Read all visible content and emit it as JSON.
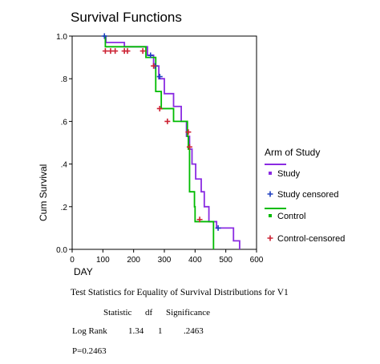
{
  "chart_data": {
    "type": "line",
    "title": "Survival Functions",
    "xlabel": "DAY",
    "ylabel": "Cum Survival",
    "xlim": [
      0,
      600
    ],
    "ylim": [
      0,
      1
    ],
    "x_ticks": [
      0,
      100,
      200,
      300,
      400,
      500,
      600
    ],
    "x_tick_labels": [
      "0",
      "100",
      "200",
      "300",
      "400",
      "500",
      "600"
    ],
    "y_ticks": [
      0,
      0.2,
      0.4,
      0.6,
      0.8,
      1.0
    ],
    "y_tick_labels": [
      "0.0",
      ".2",
      ".4",
      ".6",
      ".8",
      "1.0"
    ],
    "grid": false,
    "legend_title": "Arm of Study",
    "legend_position": "right",
    "series": [
      {
        "name": "Study",
        "color": "#8a2be2",
        "steps": [
          [
            100,
            1.0
          ],
          [
            110,
            0.97
          ],
          [
            170,
            0.95
          ],
          [
            230,
            0.95
          ],
          [
            245,
            0.91
          ],
          [
            265,
            0.86
          ],
          [
            282,
            0.8
          ],
          [
            300,
            0.73
          ],
          [
            330,
            0.67
          ],
          [
            355,
            0.6
          ],
          [
            372,
            0.53
          ],
          [
            382,
            0.47
          ],
          [
            390,
            0.4
          ],
          [
            402,
            0.33
          ],
          [
            420,
            0.27
          ],
          [
            430,
            0.2
          ],
          [
            445,
            0.13
          ],
          [
            465,
            0.13
          ],
          [
            470,
            0.1
          ],
          [
            520,
            0.1
          ],
          [
            525,
            0.04
          ],
          [
            540,
            0.04
          ],
          [
            545,
            0.0
          ]
        ]
      },
      {
        "name": "Control",
        "color": "#00bb00",
        "steps": [
          [
            100,
            1.0
          ],
          [
            108,
            0.95
          ],
          [
            232,
            0.95
          ],
          [
            240,
            0.9
          ],
          [
            260,
            0.9
          ],
          [
            272,
            0.74
          ],
          [
            290,
            0.66
          ],
          [
            330,
            0.6
          ],
          [
            375,
            0.53
          ],
          [
            378,
            0.47
          ],
          [
            382,
            0.27
          ],
          [
            385,
            0.27
          ],
          [
            398,
            0.2
          ],
          [
            400,
            0.13
          ],
          [
            455,
            0.13
          ],
          [
            460,
            0.0
          ]
        ]
      }
    ],
    "censored": [
      {
        "name": "Study censored",
        "color": "#1f3fbf",
        "points": [
          [
            105,
            1.0
          ],
          [
            255,
            0.91
          ],
          [
            270,
            0.86
          ],
          [
            285,
            0.81
          ],
          [
            475,
            0.1
          ]
        ]
      },
      {
        "name": "Control-censored",
        "color": "#cc2233",
        "points": [
          [
            108,
            0.93
          ],
          [
            125,
            0.93
          ],
          [
            140,
            0.93
          ],
          [
            170,
            0.93
          ],
          [
            180,
            0.93
          ],
          [
            230,
            0.93
          ],
          [
            265,
            0.86
          ],
          [
            285,
            0.66
          ],
          [
            310,
            0.6
          ],
          [
            378,
            0.55
          ],
          [
            382,
            0.48
          ],
          [
            415,
            0.14
          ]
        ]
      }
    ]
  },
  "stats": {
    "heading": "Test Statistics for Equality of Survival Distributions for V1",
    "col_statistic": "Statistic",
    "col_df": "df",
    "col_significance": "Significance",
    "row_label": "Log Rank",
    "row_statistic": "1.34",
    "row_df": "1",
    "row_significance": ".2463",
    "p_value": "P=0.2463"
  }
}
